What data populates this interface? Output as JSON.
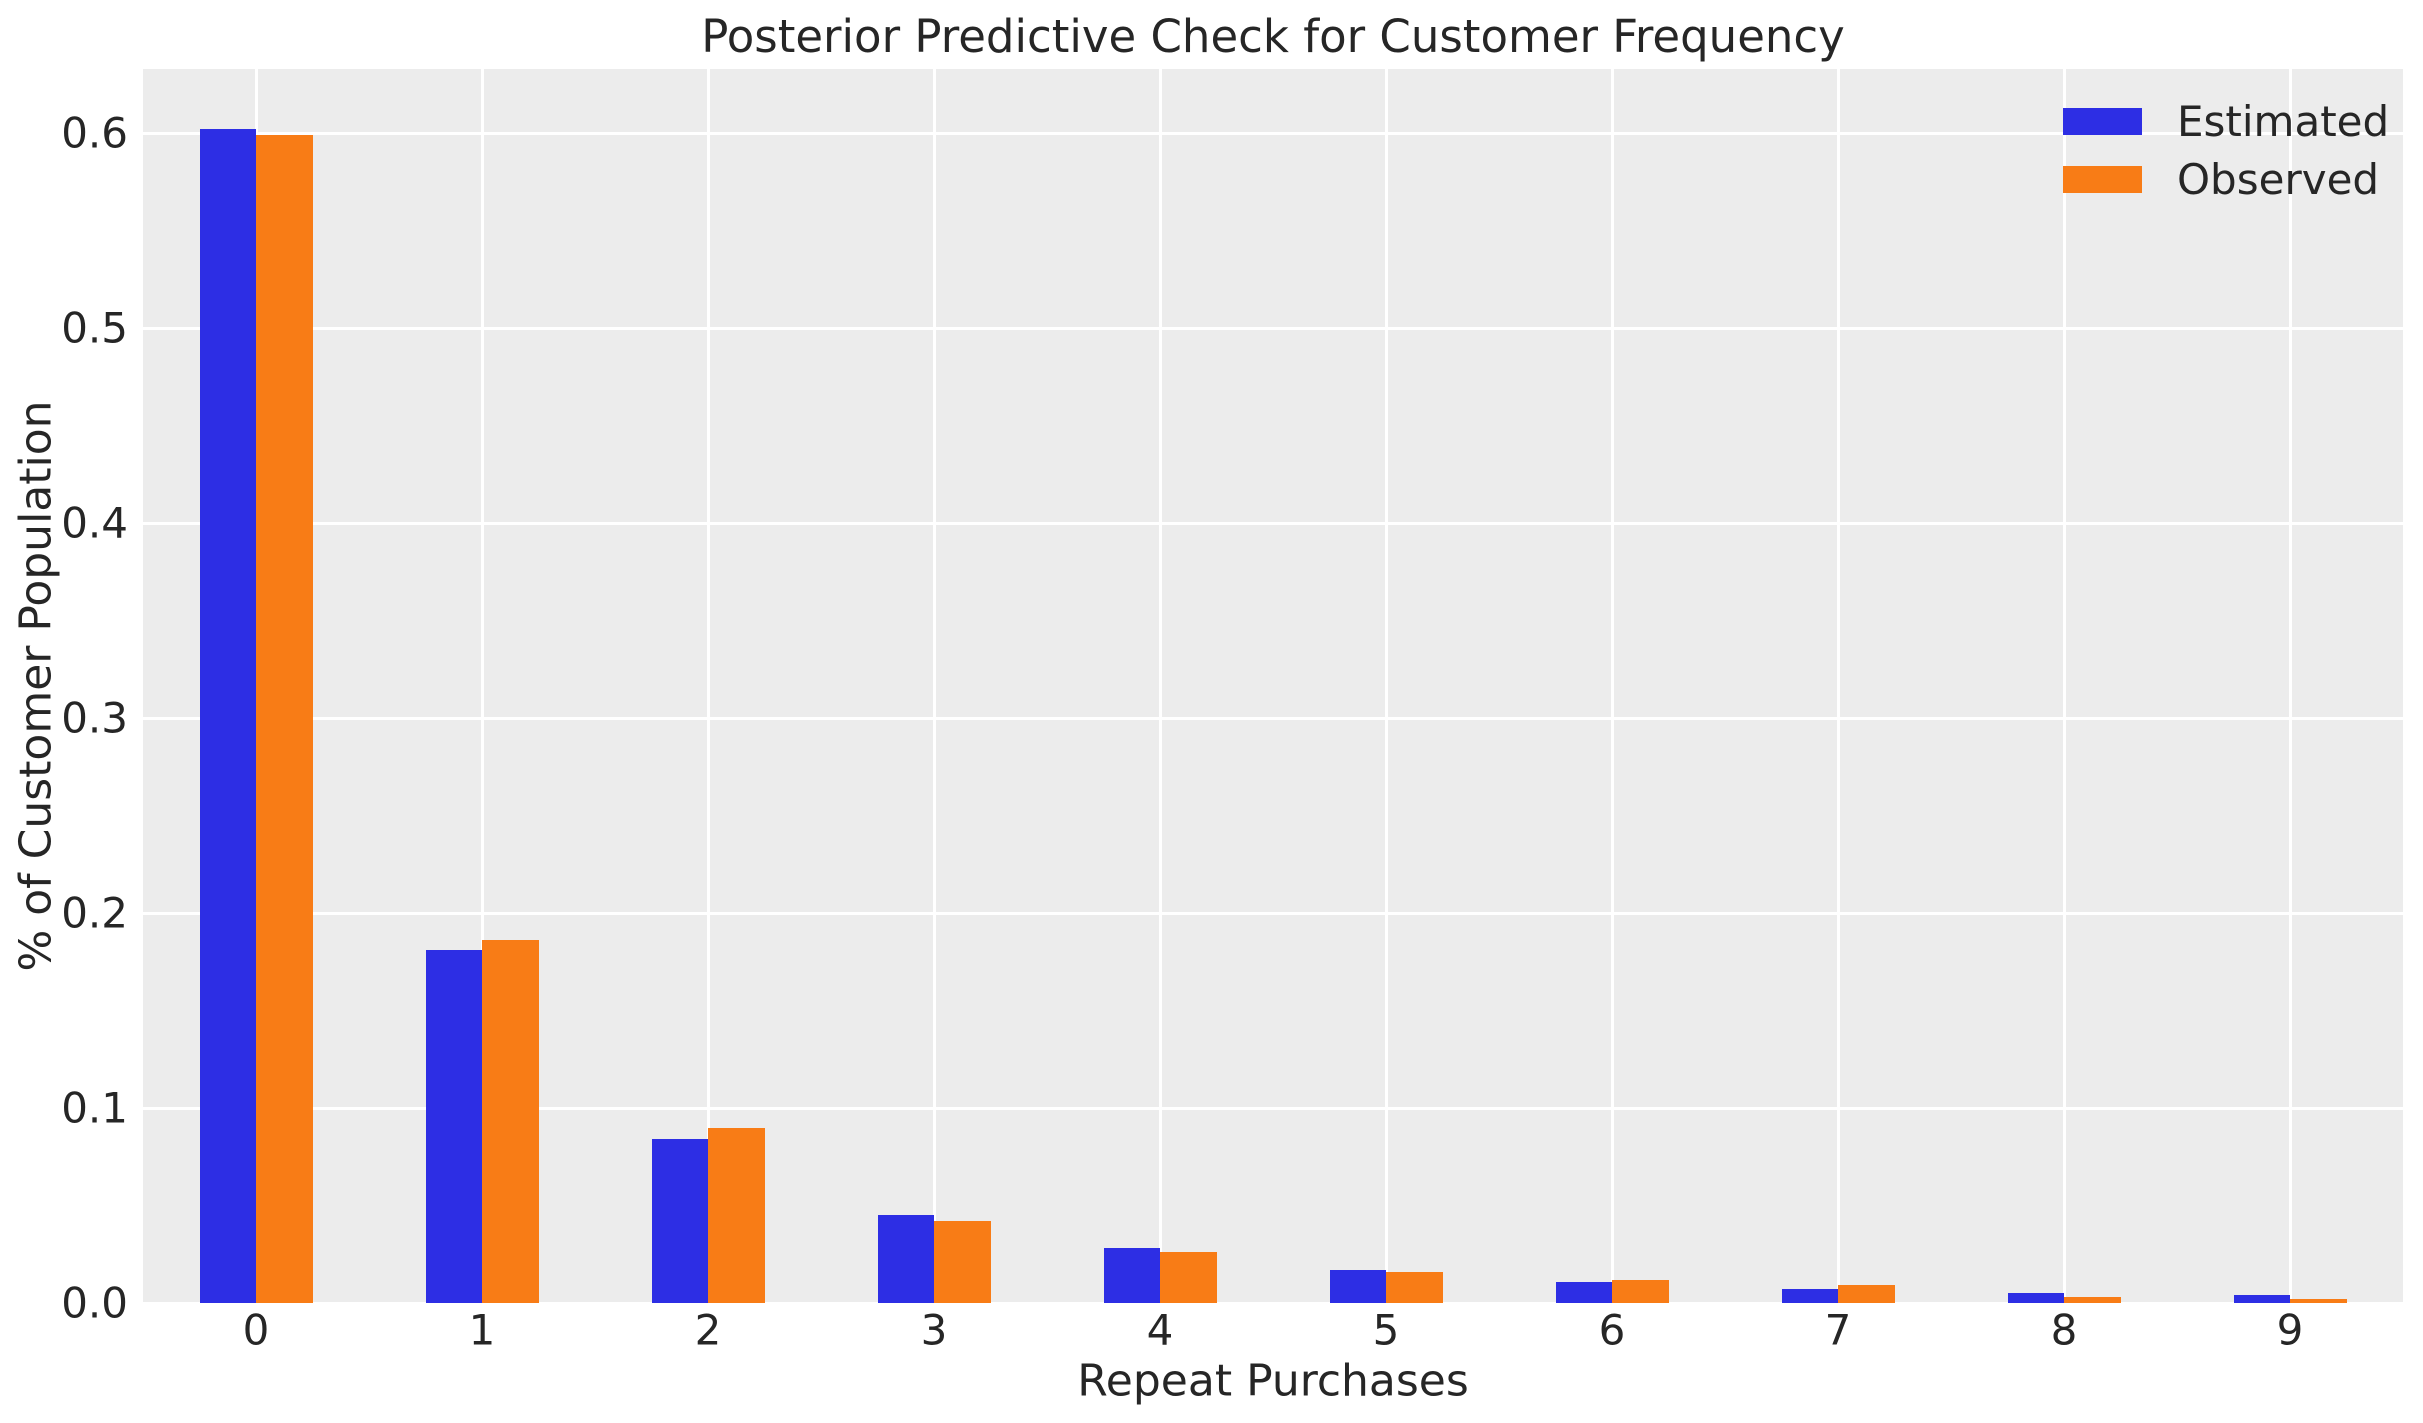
{
  "chart_data": {
    "type": "bar",
    "title": "Posterior Predictive Check for Customer Frequency",
    "xlabel": "Repeat Purchases",
    "ylabel": "% of Customer Population",
    "categories": [
      "0",
      "1",
      "2",
      "3",
      "4",
      "5",
      "6",
      "7",
      "8",
      "9"
    ],
    "series": [
      {
        "name": "Estimated",
        "color": "#2d2ee4",
        "values": [
          0.602,
          0.181,
          0.084,
          0.045,
          0.028,
          0.017,
          0.011,
          0.007,
          0.005,
          0.004
        ]
      },
      {
        "name": "Observed",
        "color": "#f87c16",
        "values": [
          0.599,
          0.186,
          0.09,
          0.042,
          0.026,
          0.016,
          0.012,
          0.009,
          0.003,
          0.002
        ]
      }
    ],
    "yticks": [
      "0.0",
      "0.1",
      "0.2",
      "0.3",
      "0.4",
      "0.5",
      "0.6"
    ],
    "ytick_values": [
      0.0,
      0.1,
      0.2,
      0.3,
      0.4,
      0.5,
      0.6
    ],
    "ylim": [
      0,
      0.633
    ],
    "xlim": [
      -0.5,
      9.5
    ],
    "grid": true,
    "legend_position": "upper right",
    "plot_bg_color": "#ececec",
    "grid_color": "#ffffff",
    "text_color": "#262626",
    "figure_bg_color": "#ffffff"
  }
}
